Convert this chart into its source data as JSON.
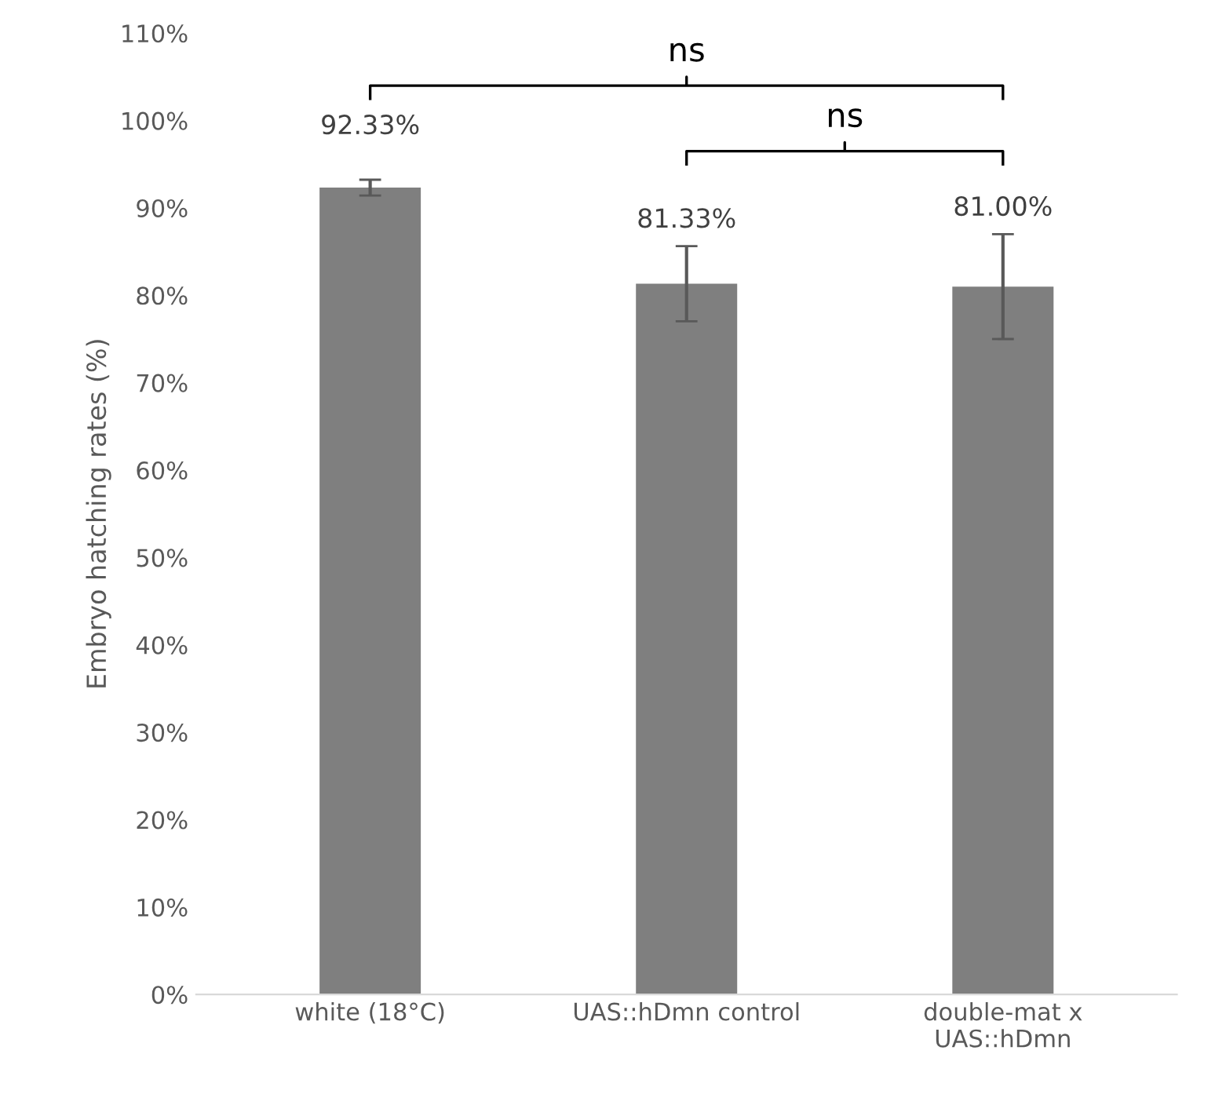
{
  "chart_data": {
    "type": "bar",
    "ylabel": "Embryo hatching rates (%)",
    "categories": [
      "white (18°C)",
      "UAS::hDmn control",
      "double-mat x\nUAS::hDmn"
    ],
    "values": [
      92.33,
      81.33,
      81.0
    ],
    "errors": [
      0.9,
      4.3,
      6.0
    ],
    "value_labels": [
      "92.33%",
      "81.33%",
      "81.00%"
    ],
    "color": "#7f7f7f",
    "ylim": [
      0,
      110
    ],
    "yticks": [
      {
        "value": 0,
        "label": "0%"
      },
      {
        "value": 10,
        "label": "10%"
      },
      {
        "value": 20,
        "label": "20%"
      },
      {
        "value": 30,
        "label": "30%"
      },
      {
        "value": 40,
        "label": "40%"
      },
      {
        "value": 50,
        "label": "50%"
      },
      {
        "value": 60,
        "label": "60%"
      },
      {
        "value": 70,
        "label": "70%"
      },
      {
        "value": 80,
        "label": "80%"
      },
      {
        "value": 90,
        "label": "90%"
      },
      {
        "value": 100,
        "label": "100%"
      },
      {
        "value": 110,
        "label": "110%"
      }
    ],
    "annotations": [
      "ns",
      "ns"
    ],
    "grid": false
  }
}
